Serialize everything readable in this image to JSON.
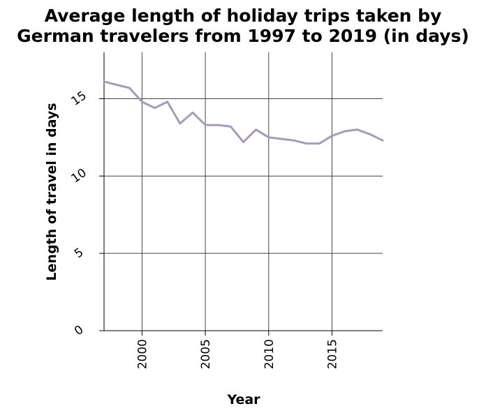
{
  "chart_data": {
    "type": "line",
    "title_lines": [
      "Average length of holiday trips taken by",
      "German travelers from 1997 to 2019 (in days)"
    ],
    "xlabel": "Year",
    "ylabel": "Length of travel in days",
    "xlim": [
      1997,
      2019
    ],
    "ylim": [
      0,
      18
    ],
    "xticks": [
      2000,
      2005,
      2010,
      2015
    ],
    "yticks": [
      0,
      5,
      10,
      15
    ],
    "grid": true,
    "line_color": "#a899bd",
    "series": [
      {
        "x": [
          1997,
          1998,
          1999,
          2000,
          2001,
          2002,
          2003,
          2004,
          2005,
          2006,
          2007,
          2008,
          2009,
          2010,
          2011,
          2012,
          2013,
          2014,
          2015,
          2016,
          2017,
          2018,
          2019
        ],
        "values": [
          16.1,
          15.9,
          15.7,
          14.8,
          14.4,
          14.8,
          13.4,
          14.1,
          13.3,
          13.3,
          13.2,
          12.2,
          13.0,
          12.5,
          12.4,
          12.3,
          12.1,
          12.1,
          12.6,
          12.9,
          13.0,
          12.7,
          12.3
        ]
      }
    ]
  }
}
